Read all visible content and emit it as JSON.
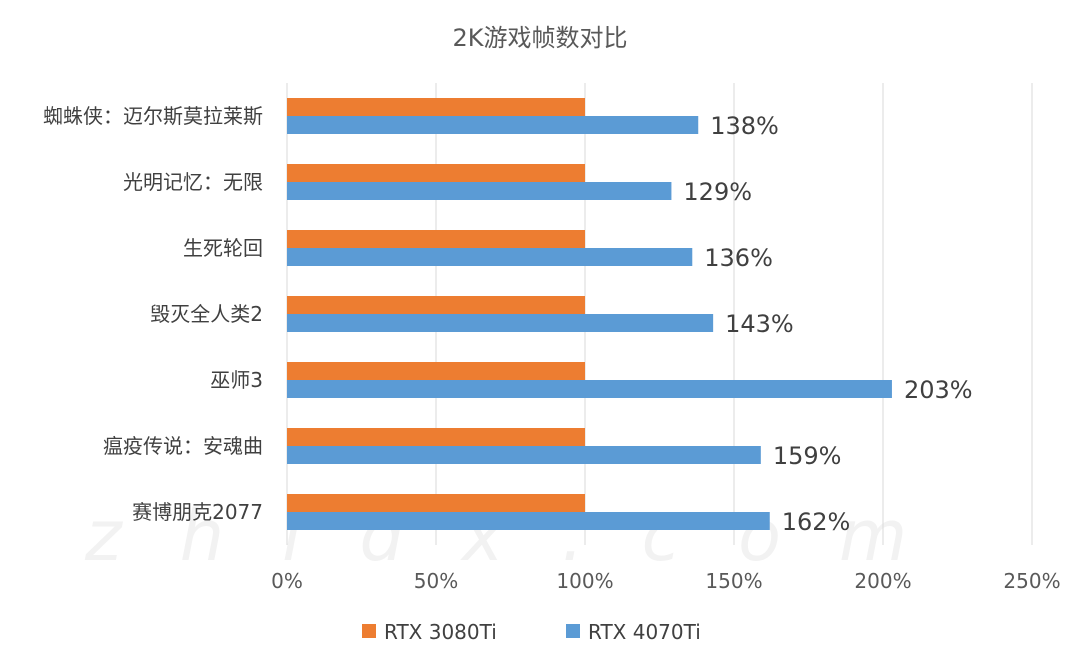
{
  "chart_data": {
    "type": "bar",
    "orientation": "horizontal",
    "title": "2K游戏帧数对比",
    "categories": [
      "蜘蛛侠：迈尔斯莫拉莱斯",
      "光明记忆：无限",
      "生死轮回",
      "毁灭全人类2",
      "巫师3",
      "瘟疫传说：安魂曲",
      "赛博朋克2077"
    ],
    "series": [
      {
        "name": "RTX 3080Ti",
        "color": "#ed7d31",
        "values": [
          100,
          100,
          100,
          100,
          100,
          100,
          100
        ],
        "labels": []
      },
      {
        "name": "RTX 4070Ti",
        "color": "#5b9bd5",
        "values": [
          138,
          129,
          136,
          143,
          203,
          159,
          162
        ],
        "labels": [
          "138%",
          "129%",
          "136%",
          "143%",
          "203%",
          "159%",
          "162%"
        ]
      }
    ],
    "xlim": [
      0,
      250
    ],
    "xticks": [
      0,
      50,
      100,
      150,
      200,
      250
    ],
    "xtick_labels": [
      "0%",
      "50%",
      "100%",
      "150%",
      "200%",
      "250%"
    ],
    "grid": true,
    "legend_position": "bottom"
  },
  "watermark": "zhidx.com"
}
